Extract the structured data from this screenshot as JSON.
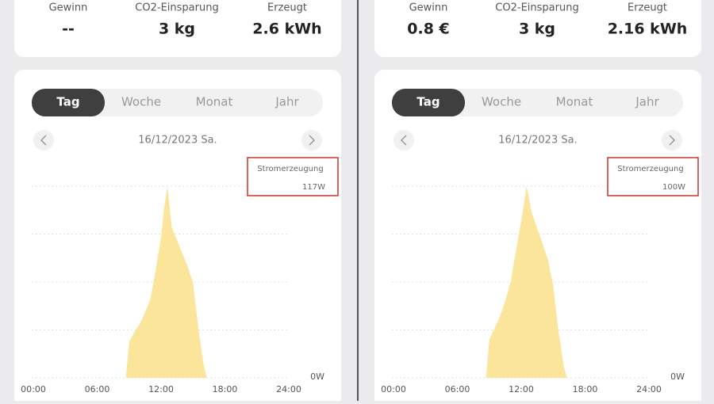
{
  "panels": [
    {
      "stats": [
        {
          "label": "Gewinn",
          "value": "--"
        },
        {
          "label": "CO2-Einsparung",
          "value": "3 kg"
        },
        {
          "label": "Erzeugt",
          "value": "2.6 kWh"
        }
      ],
      "tabs": [
        "Tag",
        "Woche",
        "Monat",
        "Jahr"
      ],
      "date": "16/12/2023 Sa.",
      "chart": {
        "type": "area",
        "color": "#fbe59b",
        "x": [
          0,
          8.7,
          9.0,
          9.5,
          10.0,
          10.5,
          11.0,
          11.5,
          12.0,
          12.3,
          12.6,
          13.0,
          13.5,
          14.0,
          14.5,
          15.0,
          15.5,
          16.0,
          16.3,
          24
        ],
        "values": [
          0,
          0,
          22,
          28,
          33,
          40,
          48,
          66,
          86,
          104,
          117,
          92,
          84,
          76,
          68,
          58,
          30,
          8,
          0,
          0
        ],
        "xlim": [
          0,
          24
        ],
        "xticks": [
          {
            "value": 0,
            "label": "00:00"
          },
          {
            "value": 6,
            "label": "06:00"
          },
          {
            "value": 12,
            "label": "12:00"
          },
          {
            "value": 18,
            "label": "18:00"
          },
          {
            "value": 24,
            "label": "24:00"
          }
        ],
        "ylim": [
          0,
          117
        ],
        "yticks": [
          {
            "value": 0,
            "label": "0W"
          }
        ],
        "ygrid": [
          0,
          29.25,
          58.5,
          87.75,
          117
        ],
        "tooltip": {
          "name": "Stromerzeugung",
          "value_label": "117W"
        }
      }
    },
    {
      "stats": [
        {
          "label": "Gewinn",
          "value": "0.8 €"
        },
        {
          "label": "CO2-Einsparung",
          "value": "3 kg"
        },
        {
          "label": "Erzeugt",
          "value": "2.16 kWh"
        }
      ],
      "tabs": [
        "Tag",
        "Woche",
        "Monat",
        "Jahr"
      ],
      "date": "16/12/2023 Sa.",
      "chart": {
        "type": "area",
        "color": "#fbe59b",
        "x": [
          0,
          8.7,
          9.0,
          9.5,
          10.0,
          10.5,
          11.0,
          11.5,
          12.0,
          12.3,
          12.5,
          13.0,
          13.5,
          14.0,
          14.5,
          15.0,
          15.5,
          16.0,
          16.3,
          24
        ],
        "values": [
          0,
          0,
          20,
          26,
          32,
          40,
          50,
          66,
          82,
          92,
          100,
          86,
          78,
          70,
          62,
          48,
          24,
          6,
          0,
          0
        ],
        "xlim": [
          0,
          24
        ],
        "xticks": [
          {
            "value": 0,
            "label": "00:00"
          },
          {
            "value": 6,
            "label": "06:00"
          },
          {
            "value": 12,
            "label": "12:00"
          },
          {
            "value": 18,
            "label": "18:00"
          },
          {
            "value": 24,
            "label": "24:00"
          }
        ],
        "ylim": [
          0,
          100
        ],
        "yticks": [
          {
            "value": 0,
            "label": "0W"
          }
        ],
        "ygrid": [
          0,
          25,
          50,
          75,
          100
        ],
        "tooltip": {
          "name": "Stromerzeugung",
          "value_label": "100W"
        }
      }
    }
  ]
}
